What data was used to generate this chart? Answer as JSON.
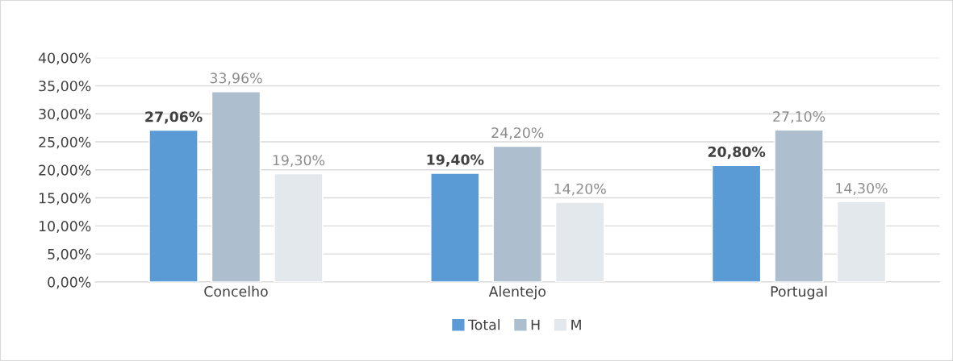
{
  "chart_data": {
    "type": "bar",
    "categories": [
      "Concelho",
      "Alentejo",
      "Portugal"
    ],
    "series": [
      {
        "name": "Total",
        "color": "#5b9bd5",
        "values": [
          27.06,
          19.4,
          20.8
        ],
        "value_labels": [
          "27,06%",
          "19,40%",
          "20,80%"
        ]
      },
      {
        "name": "H",
        "color": "#adbfcf",
        "values": [
          33.96,
          24.2,
          27.1
        ],
        "value_labels": [
          "33,96%",
          "24,20%",
          "27,10%"
        ]
      },
      {
        "name": "M",
        "color": "#e3e8ed",
        "values": [
          19.3,
          14.2,
          14.3
        ],
        "value_labels": [
          "19,30%",
          "14,20%",
          "14,30%"
        ]
      }
    ],
    "ylim": [
      0,
      40
    ],
    "yticks": [
      {
        "value": 0,
        "label": "0,00%"
      },
      {
        "value": 5,
        "label": "5,00%"
      },
      {
        "value": 10,
        "label": "10,00%"
      },
      {
        "value": 15,
        "label": "15,00%"
      },
      {
        "value": 20,
        "label": "20,00%"
      },
      {
        "value": 25,
        "label": "25,00%"
      },
      {
        "value": 30,
        "label": "30,00%"
      },
      {
        "value": 35,
        "label": "35,00%"
      },
      {
        "value": 40,
        "label": "40,00%"
      }
    ],
    "grid": "y",
    "legend": "bottom"
  }
}
